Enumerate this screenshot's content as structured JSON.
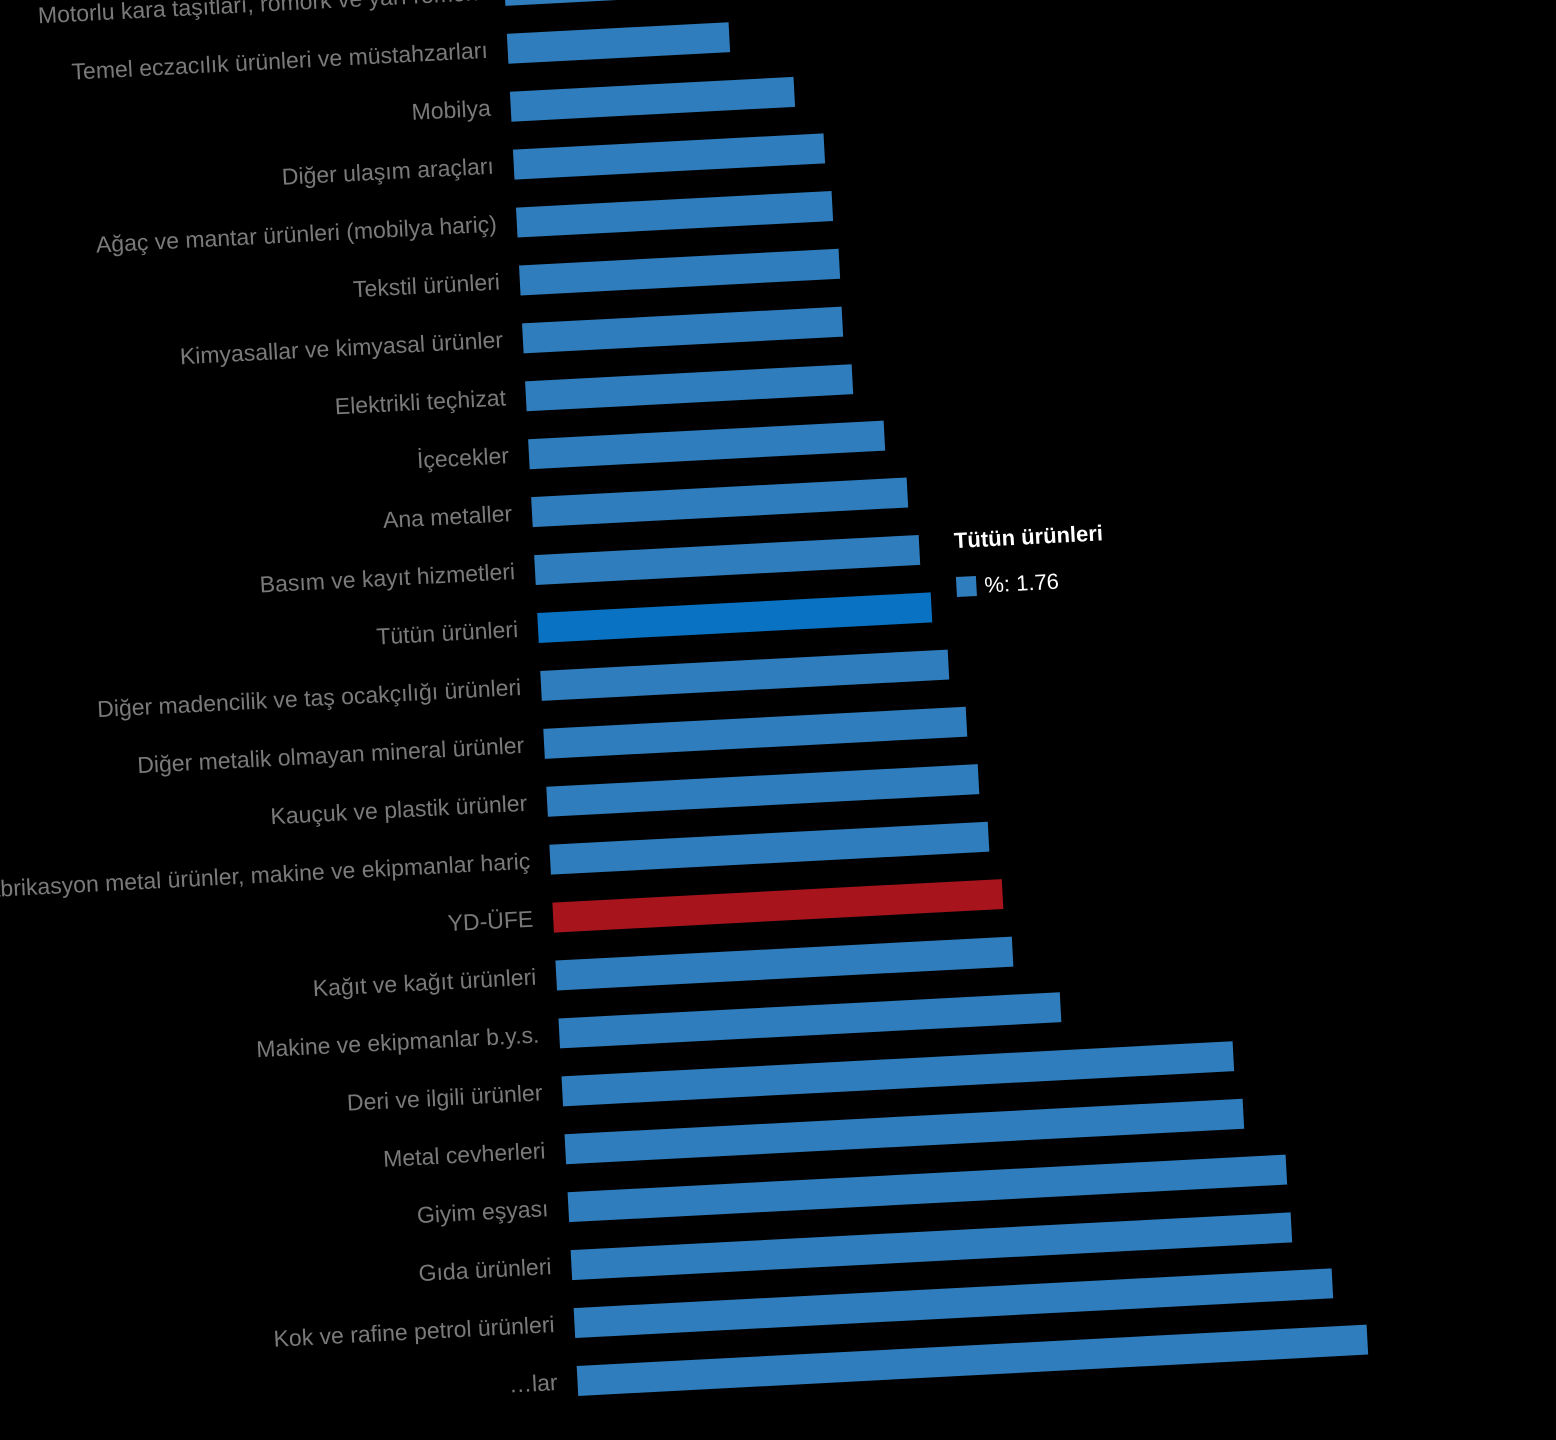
{
  "chart_data": {
    "type": "bar",
    "orientation": "horizontal",
    "title": "",
    "xlabel": "",
    "ylabel": "",
    "categories": [
      "Motorlu kara taşıtları, römork ve yarı römork",
      "Temel eczacılık ürünleri ve müstahzarları",
      "Mobilya",
      "Diğer ulaşım araçları",
      "Ağaç ve mantar ürünleri (mobilya hariç)",
      "Tekstil ürünleri",
      "Kimyasallar ve kimyasal ürünler",
      "Elektrikli teçhizat",
      "İçecekler",
      "Ana metaller",
      "Basım ve kayıt hizmetleri",
      "Tütün ürünleri",
      "Diğer madencilik ve taş ocakçılığı ürünleri",
      "Diğer metalik olmayan mineral ürünler",
      "Kauçuk ve plastik ürünler",
      "Fabrikasyon metal ürünler, makine ve ekipmanlar hariç",
      "YD-ÜFE",
      "Kağıt ve kağıt ürünleri",
      "Makine ve ekipmanlar b.y.s.",
      "Deri ve ilgili ürünler",
      "Metal cevherleri",
      "Giyim eşyası",
      "Gıda ürünleri",
      "Kok ve rafine petrol ürünleri",
      "…lar"
    ],
    "series": [
      {
        "name": "%",
        "values": [
          0.52,
          0.99,
          1.27,
          1.39,
          1.41,
          1.43,
          1.43,
          1.46,
          1.59,
          1.68,
          1.72,
          1.76,
          1.82,
          1.89,
          1.93,
          1.96,
          2.01,
          2.04,
          2.24,
          3.0,
          3.03,
          3.21,
          3.22,
          3.39,
          3.53
        ]
      }
    ],
    "highlight": {
      "Tütün ürünleri": "#0a72c2",
      "YD-ÜFE": "#a8141c"
    },
    "default_color": "#2f7dbd",
    "label_color": "#7a7a7a"
  },
  "tooltip": {
    "title": "Tütün ürünleri",
    "text": "%: 1.76"
  }
}
